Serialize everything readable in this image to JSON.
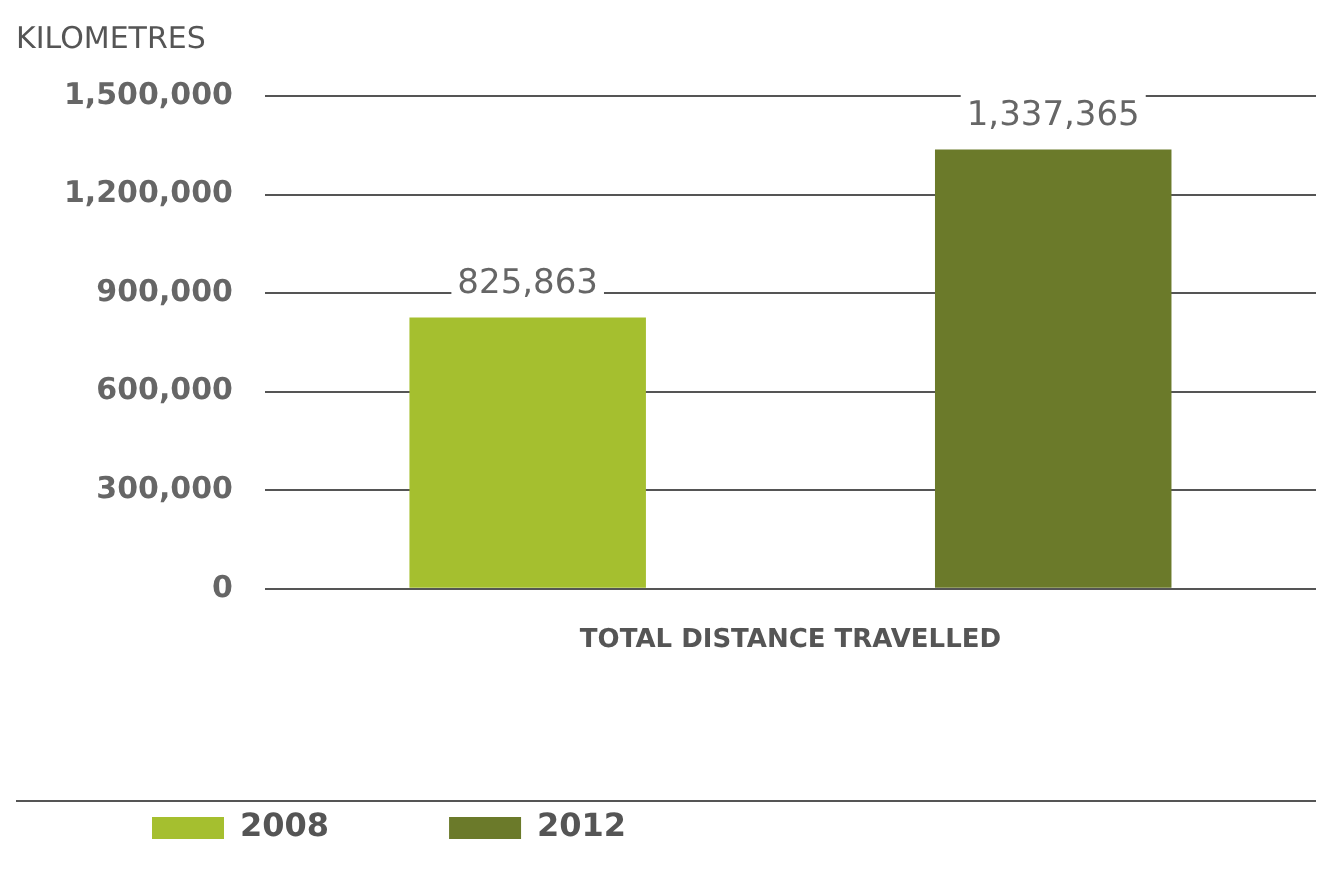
{
  "chart_data": {
    "type": "bar",
    "ylabel": "KILOMETRES",
    "categories": [
      "TOTAL DISTANCE TRAVELLED"
    ],
    "series": [
      {
        "name": "2008",
        "color": "#a5bf2f",
        "values": [
          825863
        ],
        "value_labels": [
          "825,863"
        ]
      },
      {
        "name": "2012",
        "color": "#6b7a2a",
        "values": [
          1337365
        ],
        "value_labels": [
          "1,337,365"
        ]
      }
    ],
    "ylim": [
      0,
      1500000
    ],
    "yticks": [
      {
        "value": 0,
        "label": "0"
      },
      {
        "value": 300000,
        "label": "300,000"
      },
      {
        "value": 600000,
        "label": "600,000"
      },
      {
        "value": 900000,
        "label": "900,000"
      },
      {
        "value": 1200000,
        "label": "1,200,000"
      },
      {
        "value": 1500000,
        "label": "1,500,000"
      }
    ],
    "grid": "y",
    "legend": "bottom"
  }
}
